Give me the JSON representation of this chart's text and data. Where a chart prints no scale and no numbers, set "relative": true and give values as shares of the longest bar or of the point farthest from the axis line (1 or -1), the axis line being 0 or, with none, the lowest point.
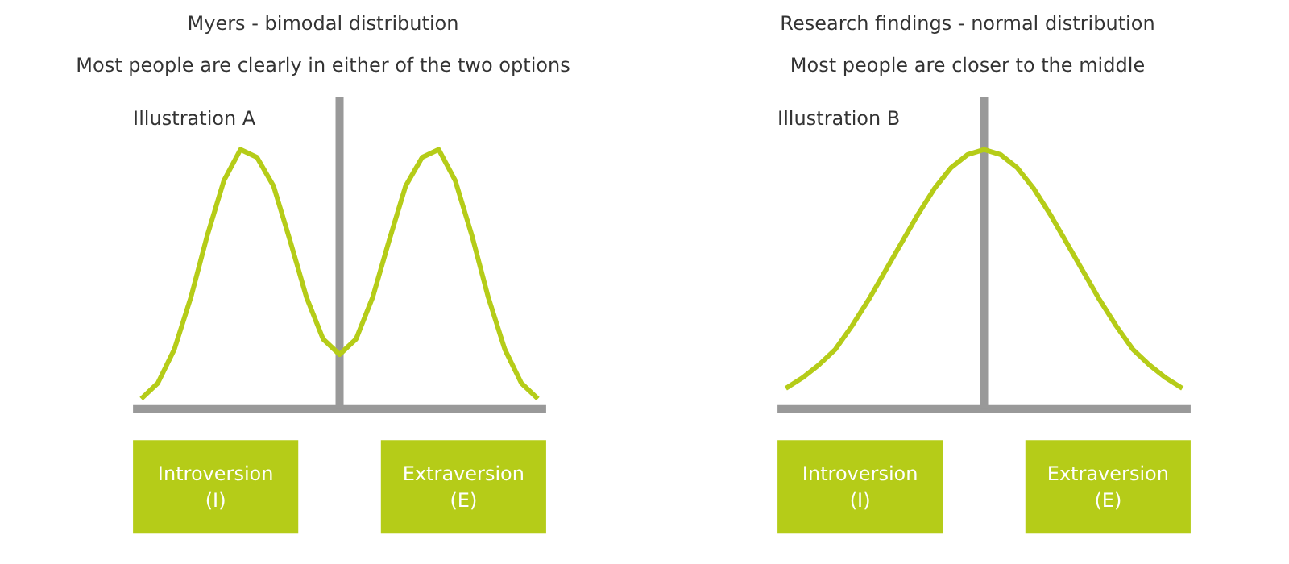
{
  "chart_data": [
    {
      "type": "line",
      "title": "Myers - bimodal distribution",
      "subtitle": "Most people are clearly in either of the two options",
      "relative": true,
      "annotations": [
        "Illustration A",
        "Introversion\n(I)",
        "Extraversion\n(E)"
      ],
      "categories": [
        null,
        null,
        null,
        null,
        null,
        null,
        null,
        null,
        null,
        null,
        null,
        null,
        null,
        null,
        null,
        null,
        null,
        null,
        null,
        null,
        null,
        null,
        null,
        null,
        null
      ],
      "series": [
        {
          "color": "#b5cc18",
          "values": [
            0.04,
            0.1,
            0.23,
            0.43,
            0.67,
            0.88,
            1.0,
            0.97,
            0.86,
            0.65,
            0.43,
            0.27,
            0.21,
            0.27,
            0.43,
            0.65,
            0.86,
            0.97,
            1.0,
            0.88,
            0.67,
            0.43,
            0.23,
            0.1,
            0.04
          ]
        }
      ]
    },
    {
      "type": "line",
      "title": "Research findings - normal distribution",
      "subtitle": "Most people are closer to the middle",
      "relative": true,
      "annotations": [
        "Illustration B",
        "Introversion\n(I)",
        "Extraversion\n(E)"
      ],
      "categories": [
        null,
        null,
        null,
        null,
        null,
        null,
        null,
        null,
        null,
        null,
        null,
        null,
        null,
        null,
        null,
        null,
        null,
        null,
        null,
        null,
        null,
        null,
        null,
        null,
        null
      ],
      "series": [
        {
          "color": "#b5cc18",
          "values": [
            0.08,
            0.12,
            0.17,
            0.23,
            0.32,
            0.42,
            0.53,
            0.64,
            0.75,
            0.85,
            0.93,
            0.98,
            1.0,
            0.98,
            0.93,
            0.85,
            0.75,
            0.64,
            0.53,
            0.42,
            0.32,
            0.23,
            0.17,
            0.12,
            0.08
          ]
        }
      ]
    }
  ]
}
